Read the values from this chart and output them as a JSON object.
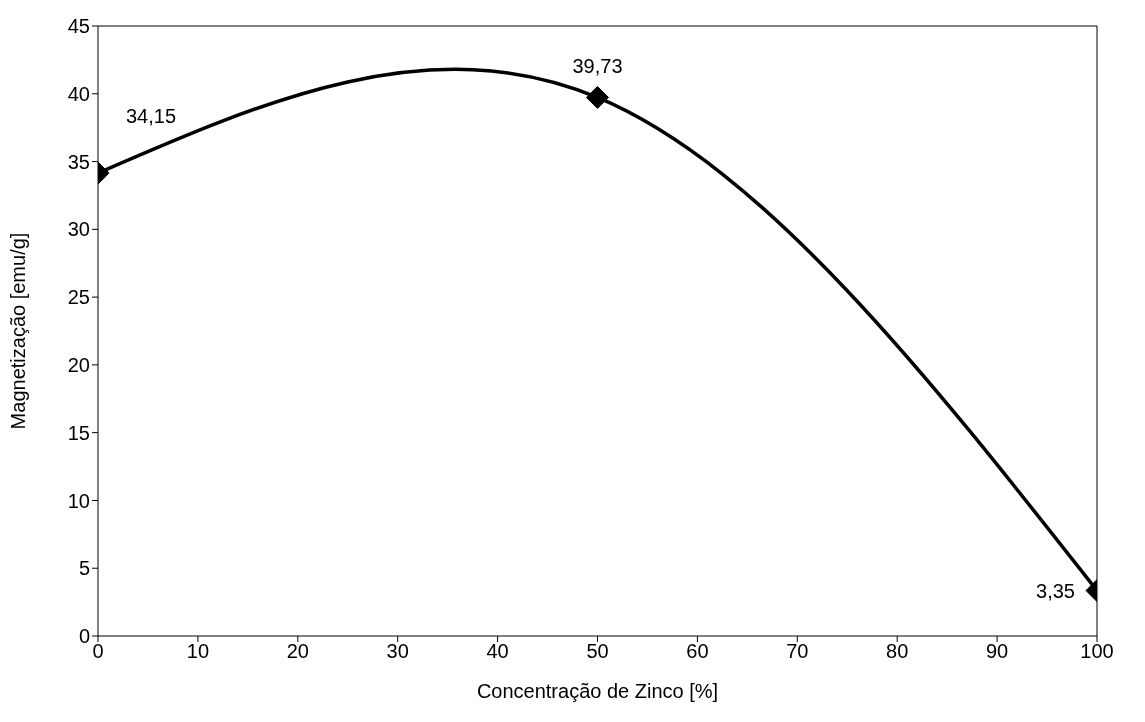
{
  "chart_data": {
    "type": "line",
    "xlabel": "Concentração de Zinco [%]",
    "ylabel": "Magnetização [emu/g]",
    "x": [
      0,
      50,
      100
    ],
    "series": [
      {
        "color": "#000000",
        "values": [
          34.15,
          39.73,
          3.35
        ],
        "value_labels": [
          "34,15",
          "39,73",
          "3,35"
        ]
      }
    ],
    "xlim": [
      0,
      100
    ],
    "xticks": [
      0,
      10,
      20,
      30,
      40,
      50,
      60,
      70,
      80,
      90,
      100
    ],
    "ylim": [
      0,
      45
    ],
    "yticks": [
      0,
      5,
      10,
      15,
      20,
      25,
      30,
      35,
      40,
      45
    ],
    "grid": false,
    "marker": "diamond",
    "line_style": "solid"
  }
}
